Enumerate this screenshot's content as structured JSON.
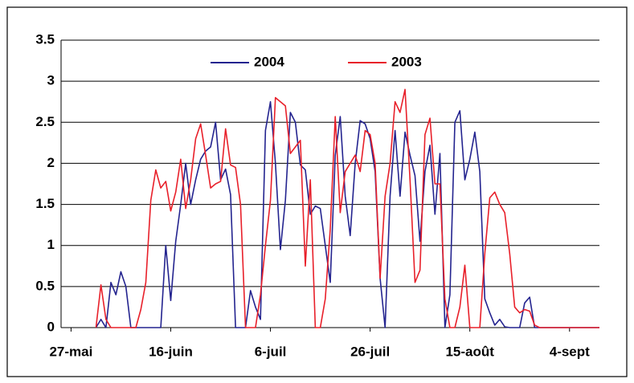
{
  "chart_data": {
    "type": "line",
    "categories": [
      null,
      null,
      "27-mai",
      null,
      null,
      null,
      null,
      null,
      null,
      null,
      null,
      null,
      null,
      null,
      null,
      null,
      null,
      null,
      null,
      null,
      null,
      null,
      "16-juin",
      null,
      null,
      null,
      null,
      null,
      null,
      null,
      null,
      null,
      null,
      null,
      null,
      null,
      null,
      null,
      null,
      null,
      null,
      null,
      "6-juil",
      null,
      null,
      null,
      null,
      null,
      null,
      null,
      null,
      null,
      null,
      null,
      null,
      null,
      null,
      null,
      null,
      null,
      null,
      null,
      "26-juil",
      null,
      null,
      null,
      null,
      null,
      null,
      null,
      null,
      null,
      null,
      null,
      null,
      null,
      null,
      null,
      null,
      null,
      null,
      null,
      "15-août",
      null,
      null,
      null,
      null,
      null,
      null,
      null,
      null,
      null,
      null,
      null,
      null,
      null,
      null,
      null,
      null,
      null,
      null,
      null,
      "4-sept",
      null,
      null,
      null,
      null,
      null,
      null
    ],
    "series": [
      {
        "name": "2004",
        "color": "#24248f",
        "values": [
          null,
          null,
          null,
          null,
          null,
          null,
          null,
          0,
          0.1,
          0,
          0.55,
          0.4,
          0.68,
          0.5,
          0,
          0,
          0,
          0,
          0,
          0,
          0,
          1.0,
          0.33,
          1.05,
          1.5,
          2.0,
          1.5,
          1.8,
          2.05,
          2.15,
          2.2,
          2.5,
          1.8,
          1.93,
          1.62,
          0,
          0,
          0,
          0.45,
          0.25,
          0.1,
          2.4,
          2.75,
          2.0,
          0.95,
          1.55,
          2.62,
          2.5,
          1.98,
          1.92,
          1.38,
          1.48,
          1.45,
          1.0,
          0.55,
          2.1,
          2.57,
          1.6,
          1.12,
          2.0,
          2.52,
          2.48,
          2.3,
          1.9,
          0.6,
          0,
          1.6,
          2.4,
          1.6,
          2.38,
          2.1,
          1.85,
          1.05,
          1.9,
          2.22,
          1.38,
          2.12,
          0,
          0.4,
          2.5,
          2.64,
          1.8,
          2.05,
          2.38,
          1.9,
          0.35,
          0.18,
          0.03,
          0.1,
          0.01,
          0,
          0,
          0,
          0.3,
          0.37,
          0,
          0,
          0,
          0,
          0,
          0,
          0,
          0,
          0,
          0,
          0,
          0,
          0,
          0
        ]
      },
      {
        "name": "2003",
        "color": "#e8202a",
        "values": [
          null,
          null,
          null,
          null,
          null,
          null,
          null,
          0,
          0.52,
          0.1,
          0,
          0,
          0,
          0,
          0,
          0,
          0.22,
          0.55,
          1.55,
          1.92,
          1.7,
          1.78,
          1.42,
          1.65,
          2.05,
          1.45,
          1.8,
          2.3,
          2.48,
          2.1,
          1.7,
          1.75,
          1.78,
          2.42,
          1.98,
          1.95,
          1.5,
          0,
          0,
          0,
          0.4,
          1.0,
          1.55,
          2.8,
          2.75,
          2.7,
          2.12,
          2.2,
          2.28,
          0.75,
          1.8,
          0,
          0,
          0.35,
          1.2,
          2.57,
          1.4,
          1.9,
          2.0,
          2.1,
          1.9,
          2.4,
          2.35,
          2.0,
          0.6,
          1.6,
          2.0,
          2.75,
          2.62,
          2.9,
          1.8,
          0.55,
          0.7,
          2.35,
          2.55,
          1.75,
          1.75,
          0.35,
          0,
          0,
          0.25,
          0.76,
          0,
          0,
          0,
          0.9,
          1.58,
          1.65,
          1.5,
          1.4,
          0.9,
          0.25,
          0.18,
          0.22,
          0.2,
          0.03,
          0,
          0,
          0,
          0,
          0,
          0,
          0,
          0,
          0,
          0,
          0,
          0,
          0
        ]
      }
    ],
    "ylim": [
      0,
      3.5
    ],
    "yticks": [
      0,
      0.5,
      1,
      1.5,
      2,
      2.5,
      3,
      3.5
    ],
    "grid": true,
    "legend": "top"
  }
}
